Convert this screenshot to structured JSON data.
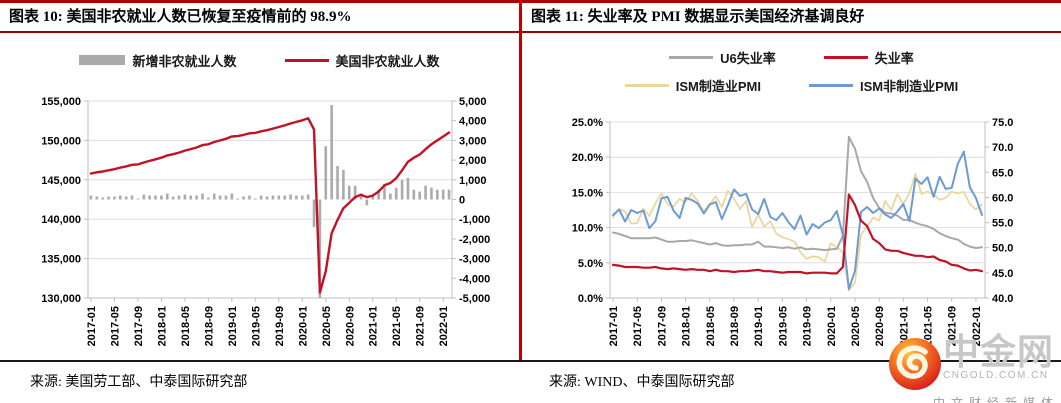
{
  "colors": {
    "accent_red": "#C00000",
    "rule_red": "#A00000",
    "line_red": "#C01328",
    "bar_gray": "#ABABAB",
    "u6_gray": "#A8A8A8",
    "ism_mfg_tan": "#EBD79E",
    "ism_nonmfg_blue": "#6B9BD2",
    "grid": "#DEDEDE",
    "axis_line": "#BFBFBF"
  },
  "chart_data": [
    {
      "type": "bar+line",
      "title": "图表 10: 美国非农就业人数已恢复至疫情前的 98.9%",
      "source": "来源: 美国劳工部、中泰国际研究部",
      "legend": [
        {
          "label": "新增非农就业人数",
          "swatch": "bar",
          "color": "#ABABAB"
        },
        {
          "label": "美国非农就业人数",
          "swatch": "line",
          "color": "#C01328"
        }
      ],
      "x": [
        "2017-01",
        "2017-02",
        "2017-03",
        "2017-04",
        "2017-05",
        "2017-06",
        "2017-07",
        "2017-08",
        "2017-09",
        "2017-10",
        "2017-11",
        "2017-12",
        "2018-01",
        "2018-02",
        "2018-03",
        "2018-04",
        "2018-05",
        "2018-06",
        "2018-07",
        "2018-08",
        "2018-09",
        "2018-10",
        "2018-11",
        "2018-12",
        "2019-01",
        "2019-02",
        "2019-03",
        "2019-04",
        "2019-05",
        "2019-06",
        "2019-07",
        "2019-08",
        "2019-09",
        "2019-10",
        "2019-11",
        "2019-12",
        "2020-01",
        "2020-02",
        "2020-03",
        "2020-04",
        "2020-05",
        "2020-06",
        "2020-07",
        "2020-08",
        "2020-09",
        "2020-10",
        "2020-11",
        "2020-12",
        "2021-01",
        "2021-02",
        "2021-03",
        "2021-04",
        "2021-05",
        "2021-06",
        "2021-07",
        "2021-08",
        "2021-09",
        "2021-10",
        "2021-11",
        "2021-12",
        "2022-01",
        "2022-02"
      ],
      "x_tick_labels": [
        "2017-01",
        "2017-05",
        "2017-09",
        "2018-01",
        "2018-05",
        "2018-09",
        "2019-01",
        "2019-05",
        "2019-09",
        "2020-01",
        "2020-05",
        "2020-09",
        "2021-01",
        "2021-05",
        "2021-09",
        "2022-01"
      ],
      "left_axis": {
        "min": 130000,
        "max": 155000,
        "tick_values": [
          155000,
          150000,
          145000,
          140000,
          135000,
          130000
        ],
        "tick_labels": [
          "155,000",
          "150,000",
          "145,000",
          "140,000",
          "135,000",
          "130,000"
        ]
      },
      "right_axis": {
        "min": -5000,
        "max": 5000,
        "tick_values": [
          5000,
          4000,
          3000,
          2000,
          1000,
          0,
          -1000,
          -2000,
          -3000,
          -4000,
          -5000
        ],
        "tick_labels": [
          "5,000",
          "4,000",
          "3,000",
          "2,000",
          "1,000",
          "0",
          "-1,000",
          "-2,000",
          "-3,000",
          "-4,000",
          "-5,000"
        ]
      },
      "series": [
        {
          "name": "新增非农就业人数",
          "type": "bar",
          "axis": "right",
          "color": "#ABABAB",
          "values": [
            200,
            150,
            100,
            150,
            150,
            200,
            150,
            200,
            50,
            250,
            200,
            200,
            200,
            300,
            150,
            200,
            250,
            200,
            200,
            300,
            100,
            300,
            200,
            200,
            300,
            50,
            150,
            200,
            50,
            200,
            150,
            200,
            200,
            200,
            250,
            200,
            200,
            250,
            -1400,
            -20700,
            2700,
            4800,
            1700,
            1500,
            700,
            700,
            300,
            -300,
            200,
            500,
            800,
            300,
            600,
            1000,
            1100,
            500,
            400,
            700,
            600,
            500,
            500,
            500
          ]
        },
        {
          "name": "美国非农就业人数",
          "type": "line",
          "axis": "left",
          "color": "#C01328",
          "width": 2.4,
          "values": [
            145800,
            145950,
            146050,
            146200,
            146350,
            146550,
            146700,
            146900,
            146950,
            147200,
            147400,
            147600,
            147800,
            148100,
            148250,
            148450,
            148700,
            148900,
            149100,
            149400,
            149500,
            149800,
            150000,
            150200,
            150500,
            150550,
            150700,
            150900,
            150950,
            151150,
            151300,
            151500,
            151700,
            151900,
            152150,
            152350,
            152550,
            152800,
            151400,
            130700,
            133400,
            138200,
            139900,
            141400,
            142100,
            142800,
            143100,
            142800,
            143000,
            143500,
            144300,
            144600,
            145200,
            146200,
            147300,
            147800,
            148200,
            148900,
            149500,
            150000,
            150500,
            151000
          ]
        }
      ]
    },
    {
      "type": "line",
      "title": "图表 11: 失业率及 PMI 数据显示美国经济基调良好",
      "source": "来源: WIND、中泰国际研究部",
      "legend": [
        {
          "label": "U6失业率",
          "swatch": "line",
          "color": "#A8A8A8"
        },
        {
          "label": "失业率",
          "swatch": "line",
          "color": "#C01328"
        },
        {
          "label": "ISM制造业PMI",
          "swatch": "line",
          "color": "#EBD79E"
        },
        {
          "label": "ISM非制造业PMI",
          "swatch": "line",
          "color": "#6B9BD2"
        }
      ],
      "x": [
        "2017-01",
        "2017-02",
        "2017-03",
        "2017-04",
        "2017-05",
        "2017-06",
        "2017-07",
        "2017-08",
        "2017-09",
        "2017-10",
        "2017-11",
        "2017-12",
        "2018-01",
        "2018-02",
        "2018-03",
        "2018-04",
        "2018-05",
        "2018-06",
        "2018-07",
        "2018-08",
        "2018-09",
        "2018-10",
        "2018-11",
        "2018-12",
        "2019-01",
        "2019-02",
        "2019-03",
        "2019-04",
        "2019-05",
        "2019-06",
        "2019-07",
        "2019-08",
        "2019-09",
        "2019-10",
        "2019-11",
        "2019-12",
        "2020-01",
        "2020-02",
        "2020-03",
        "2020-04",
        "2020-05",
        "2020-06",
        "2020-07",
        "2020-08",
        "2020-09",
        "2020-10",
        "2020-11",
        "2020-12",
        "2021-01",
        "2021-02",
        "2021-03",
        "2021-04",
        "2021-05",
        "2021-06",
        "2021-07",
        "2021-08",
        "2021-09",
        "2021-10",
        "2021-11",
        "2021-12",
        "2022-01",
        "2022-02"
      ],
      "x_tick_labels": [
        "2017-01",
        "2017-05",
        "2017-09",
        "2018-01",
        "2018-05",
        "2018-09",
        "2019-01",
        "2019-05",
        "2019-09",
        "2020-01",
        "2020-05",
        "2020-09",
        "2021-01",
        "2021-05",
        "2021-09",
        "2022-01"
      ],
      "left_axis": {
        "min": 0,
        "max": 25,
        "tick_values": [
          25,
          20,
          15,
          10,
          5,
          0
        ],
        "tick_labels": [
          "25.0%",
          "20.0%",
          "15.0%",
          "10.0%",
          "5.0%",
          "0.0%"
        ]
      },
      "right_axis": {
        "min": 40,
        "max": 75,
        "tick_values": [
          75,
          70,
          65,
          60,
          55,
          50,
          45,
          40
        ],
        "tick_labels": [
          "75.0",
          "70.0",
          "65.0",
          "60.0",
          "55.0",
          "50.0",
          "45.0",
          "40.0"
        ]
      },
      "series": [
        {
          "name": "ISM制造业PMI",
          "type": "line",
          "axis": "right",
          "color": "#EBD79E",
          "width": 1.8,
          "values": [
            56.0,
            57.7,
            57.2,
            54.8,
            54.9,
            57.8,
            56.3,
            58.8,
            60.8,
            58.7,
            58.2,
            59.7,
            59.1,
            60.8,
            59.3,
            57.3,
            58.7,
            60.2,
            58.1,
            61.3,
            59.8,
            57.7,
            59.3,
            54.1,
            56.6,
            54.2,
            55.3,
            52.8,
            52.1,
            51.7,
            51.2,
            49.1,
            47.8,
            48.3,
            48.1,
            47.2,
            50.9,
            50.1,
            49.1,
            41.5,
            43.1,
            52.6,
            54.2,
            56.0,
            55.4,
            59.3,
            57.5,
            60.7,
            58.7,
            60.8,
            64.7,
            60.7,
            61.2,
            60.6,
            59.5,
            59.9,
            61.1,
            60.8,
            61.1,
            58.7,
            57.6,
            58.6
          ]
        },
        {
          "name": "U6失业率",
          "type": "line",
          "axis": "left",
          "color": "#A8A8A8",
          "width": 2,
          "values": [
            9.3,
            9.1,
            8.8,
            8.5,
            8.5,
            8.5,
            8.5,
            8.6,
            8.3,
            8.0,
            8.0,
            8.1,
            8.1,
            8.2,
            8.0,
            7.8,
            7.6,
            7.8,
            7.5,
            7.4,
            7.5,
            7.5,
            7.6,
            7.6,
            8.0,
            7.3,
            7.3,
            7.2,
            7.1,
            7.2,
            7.0,
            7.2,
            6.9,
            7.0,
            6.9,
            6.8,
            6.9,
            7.0,
            8.8,
            22.9,
            21.2,
            18.0,
            16.5,
            14.2,
            12.8,
            12.1,
            12.0,
            11.7,
            11.1,
            11.1,
            10.7,
            10.4,
            10.2,
            9.8,
            9.2,
            8.8,
            8.5,
            8.3,
            7.7,
            7.3,
            7.1,
            7.2
          ]
        },
        {
          "name": "ISM非制造业PMI",
          "type": "line",
          "axis": "right",
          "color": "#6B9BD2",
          "width": 2,
          "values": [
            56.5,
            57.6,
            55.2,
            57.5,
            56.9,
            57.4,
            53.9,
            55.3,
            59.8,
            60.1,
            57.4,
            55.9,
            59.9,
            59.5,
            58.8,
            56.8,
            58.6,
            59.1,
            55.7,
            58.5,
            61.6,
            60.3,
            60.7,
            57.6,
            56.7,
            59.7,
            56.1,
            55.5,
            56.9,
            55.1,
            53.7,
            56.4,
            52.6,
            54.7,
            53.9,
            55.0,
            55.5,
            57.3,
            52.5,
            41.8,
            45.4,
            57.1,
            58.1,
            56.9,
            57.8,
            56.6,
            55.9,
            57.2,
            58.7,
            55.3,
            63.7,
            62.7,
            64.0,
            60.1,
            64.1,
            61.7,
            61.9,
            66.7,
            69.1,
            62.0,
            59.9,
            56.5
          ]
        },
        {
          "name": "失业率",
          "type": "line",
          "axis": "left",
          "color": "#C01328",
          "width": 2.2,
          "values": [
            4.7,
            4.6,
            4.4,
            4.4,
            4.4,
            4.3,
            4.3,
            4.4,
            4.2,
            4.1,
            4.2,
            4.1,
            4.0,
            4.1,
            4.0,
            4.0,
            3.8,
            4.0,
            3.8,
            3.8,
            3.7,
            3.8,
            3.8,
            3.9,
            4.0,
            3.8,
            3.8,
            3.7,
            3.6,
            3.7,
            3.7,
            3.7,
            3.5,
            3.6,
            3.6,
            3.6,
            3.5,
            3.5,
            4.4,
            14.7,
            13.2,
            11.0,
            10.2,
            8.4,
            7.8,
            6.9,
            6.7,
            6.7,
            6.4,
            6.2,
            6.0,
            6.0,
            5.8,
            5.9,
            5.4,
            5.2,
            4.7,
            4.6,
            4.2,
            3.9,
            4.0,
            3.8
          ]
        }
      ]
    }
  ],
  "logo": {
    "name": "中金网",
    "domain": "CNGOLD.COM.CN",
    "tagline": "中文财经新媒体"
  }
}
